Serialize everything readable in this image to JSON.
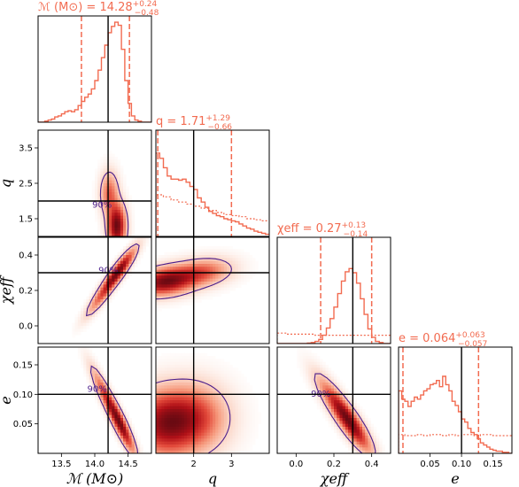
{
  "chart_data": {
    "type": "corner",
    "parameters": [
      {
        "key": "mc",
        "label": "ℳ (M⊙)",
        "range": [
          13.15,
          14.85
        ],
        "ticks": [
          13.5,
          14.0,
          14.5
        ],
        "tick_labels": [
          "13.5",
          "14.0",
          "14.5"
        ],
        "truth": 14.2,
        "title": {
          "prefix": "ℳ (M⊙) = 14.28",
          "sup": "+0.24",
          "sub": "−0.48"
        },
        "credible_interval": [
          13.8,
          14.52
        ],
        "posterior_hist": {
          "bin_edges": [
            13.15,
            13.2,
            13.25,
            13.3,
            13.35,
            13.4,
            13.45,
            13.5,
            13.55,
            13.6,
            13.65,
            13.7,
            13.75,
            13.8,
            13.85,
            13.9,
            13.95,
            14.0,
            14.05,
            14.1,
            14.15,
            14.2,
            14.25,
            14.3,
            14.35,
            14.4,
            14.45,
            14.5,
            14.55,
            14.6,
            14.65,
            14.7,
            14.75,
            14.8,
            14.85
          ],
          "values": [
            0,
            0,
            0.01,
            0.02,
            0.03,
            0.05,
            0.06,
            0.08,
            0.1,
            0.11,
            0.1,
            0.12,
            0.16,
            0.2,
            0.24,
            0.27,
            0.32,
            0.4,
            0.5,
            0.62,
            0.74,
            0.86,
            0.92,
            0.96,
            0.93,
            0.7,
            0.4,
            0.18,
            0.06,
            0.02,
            0.01,
            0,
            0,
            0
          ]
        }
      },
      {
        "key": "q",
        "label": "q",
        "range": [
          1.0,
          4.0
        ],
        "ticks": [
          1.5,
          2.5,
          3.5
        ],
        "tick_labels": [
          "1.5",
          "2.5",
          "3.5"
        ],
        "x_ticks": [
          2,
          3
        ],
        "x_tick_labels": [
          "2",
          "3"
        ],
        "truth": 2.0,
        "title": {
          "prefix": "q = 1.71",
          "sup": "+1.29",
          "sub": "−0.66"
        },
        "credible_interval": [
          1.05,
          3.0
        ],
        "posterior_hist": {
          "bin_edges": [
            1.0,
            1.1,
            1.2,
            1.3,
            1.4,
            1.5,
            1.6,
            1.7,
            1.8,
            1.9,
            2.0,
            2.1,
            2.2,
            2.3,
            2.4,
            2.5,
            2.6,
            2.7,
            2.8,
            2.9,
            3.0,
            3.1,
            3.2,
            3.3,
            3.4,
            3.5,
            3.6,
            3.7,
            3.8,
            3.9,
            4.0
          ],
          "values": [
            0.8,
            0.75,
            0.66,
            0.58,
            0.55,
            0.55,
            0.54,
            0.55,
            0.52,
            0.48,
            0.45,
            0.37,
            0.33,
            0.28,
            0.24,
            0.22,
            0.2,
            0.19,
            0.17,
            0.16,
            0.15,
            0.14,
            0.12,
            0.1,
            0.08,
            0.07,
            0.05,
            0.04,
            0.03,
            0.02
          ]
        },
        "prior_hist": {
          "bin_edges": [
            1.0,
            1.2,
            1.4,
            1.6,
            1.8,
            2.0,
            2.2,
            2.4,
            2.6,
            2.8,
            3.0,
            3.2,
            3.4,
            3.6,
            3.8,
            4.0
          ],
          "values": [
            0.4,
            0.38,
            0.35,
            0.33,
            0.31,
            0.29,
            0.27,
            0.25,
            0.23,
            0.21,
            0.2,
            0.19,
            0.17,
            0.16,
            0.15
          ]
        }
      },
      {
        "key": "chi",
        "label": "χeff",
        "range": [
          -0.1,
          0.5
        ],
        "ticks": [
          0.0,
          0.2,
          0.4
        ],
        "tick_labels": [
          "0.0",
          "0.2",
          "0.4"
        ],
        "truth": 0.3,
        "title": {
          "prefix": "χeff = 0.27",
          "sup": "+0.13",
          "sub": "−0.14"
        },
        "credible_interval": [
          0.13,
          0.4
        ],
        "posterior_hist": {
          "bin_edges": [
            -0.1,
            -0.08,
            -0.06,
            -0.04,
            -0.02,
            0.0,
            0.02,
            0.04,
            0.06,
            0.08,
            0.1,
            0.12,
            0.14,
            0.16,
            0.18,
            0.2,
            0.22,
            0.24,
            0.26,
            0.28,
            0.3,
            0.32,
            0.34,
            0.36,
            0.38,
            0.4,
            0.42,
            0.44,
            0.46,
            0.48,
            0.5
          ],
          "values": [
            0,
            0,
            0,
            0,
            0,
            0,
            0,
            0,
            0.005,
            0.01,
            0.02,
            0.04,
            0.08,
            0.15,
            0.24,
            0.35,
            0.48,
            0.6,
            0.69,
            0.72,
            0.68,
            0.58,
            0.43,
            0.28,
            0.14,
            0.06,
            0.02,
            0.01,
            0,
            0
          ]
        },
        "prior_hist": {
          "bin_edges": [
            -0.1,
            -0.05,
            0.0,
            0.05,
            0.1,
            0.15,
            0.2,
            0.25,
            0.3,
            0.35,
            0.4,
            0.45,
            0.5
          ],
          "values": [
            0.1,
            0.09,
            0.09,
            0.09,
            0.08,
            0.08,
            0.08,
            0.08,
            0.08,
            0.08,
            0.08,
            0.08
          ]
        }
      },
      {
        "key": "e",
        "label": "e",
        "range": [
          0.0,
          0.18
        ],
        "ticks": [
          0.05,
          0.1,
          0.15
        ],
        "tick_labels": [
          "0.05",
          "0.10",
          "0.15"
        ],
        "truth": 0.1,
        "title": {
          "prefix": "e = 0.064",
          "sup": "+0.063",
          "sub": "−0.057"
        },
        "credible_interval": [
          0.007,
          0.127
        ],
        "posterior_hist": {
          "bin_edges": [
            0.0,
            0.005,
            0.01,
            0.015,
            0.02,
            0.025,
            0.03,
            0.035,
            0.04,
            0.045,
            0.05,
            0.055,
            0.06,
            0.065,
            0.07,
            0.075,
            0.08,
            0.085,
            0.09,
            0.095,
            0.1,
            0.105,
            0.11,
            0.115,
            0.12,
            0.125,
            0.13,
            0.135,
            0.14,
            0.145,
            0.15,
            0.155,
            0.16,
            0.165,
            0.17,
            0.175,
            0.18
          ],
          "values": [
            0.6,
            0.52,
            0.5,
            0.45,
            0.5,
            0.54,
            0.52,
            0.56,
            0.6,
            0.62,
            0.66,
            0.67,
            0.7,
            0.64,
            0.74,
            0.66,
            0.6,
            0.5,
            0.46,
            0.4,
            0.33,
            0.3,
            0.24,
            0.2,
            0.18,
            0.14,
            0.1,
            0.08,
            0.06,
            0.04,
            0.03,
            0.02,
            0.02,
            0.01,
            0.01,
            0.0
          ]
        },
        "prior_hist": {
          "bin_edges": [
            0.0,
            0.01,
            0.02,
            0.03,
            0.04,
            0.05,
            0.06,
            0.07,
            0.08,
            0.09,
            0.1,
            0.11,
            0.12,
            0.13,
            0.14,
            0.15,
            0.16,
            0.17,
            0.18
          ],
          "values": [
            0.18,
            0.17,
            0.17,
            0.18,
            0.17,
            0.18,
            0.18,
            0.17,
            0.18,
            0.17,
            0.18,
            0.18,
            0.17,
            0.18,
            0.18,
            0.17,
            0.17,
            0.17
          ]
        }
      }
    ],
    "contour_label": "90%",
    "posterior_color": "#f26b50",
    "density_colormap": [
      "#ffffff",
      "#fbd6c7",
      "#f6997c",
      "#e2493a",
      "#b11118",
      "#6a0a12"
    ],
    "contour_color": "#4b1e8c",
    "truth_line_color": "#000000",
    "pairs": [
      {
        "x": "mc",
        "y": "q",
        "center": [
          14.32,
          1.25
        ],
        "tilt": 0.0,
        "peaks": [
          {
            "at": [
              14.33,
              1.3
            ],
            "w": 1.0
          },
          {
            "at": [
              14.22,
              2.2
            ],
            "w": 0.45
          }
        ],
        "spread": [
          0.12,
          0.55
        ]
      },
      {
        "x": "mc",
        "y": "chi",
        "center": [
          14.3,
          0.27
        ],
        "tilt": 0.9,
        "peaks": [
          {
            "at": [
              14.36,
              0.31
            ],
            "w": 1.0
          },
          {
            "at": [
              14.1,
              0.17
            ],
            "w": 0.4
          }
        ],
        "spread": [
          0.2,
          0.1
        ]
      },
      {
        "x": "q",
        "y": "chi",
        "center": [
          1.5,
          0.25
        ],
        "tilt": 0.25,
        "peaks": [
          {
            "at": [
              1.25,
              0.25
            ],
            "w": 1.0
          },
          {
            "at": [
              2.2,
              0.3
            ],
            "w": 0.5
          }
        ],
        "spread": [
          0.7,
          0.07
        ]
      },
      {
        "x": "mc",
        "y": "e",
        "center": [
          14.3,
          0.07
        ],
        "tilt": -0.9,
        "peaks": [
          {
            "at": [
              14.38,
              0.05
            ],
            "w": 1.0
          },
          {
            "at": [
              14.15,
              0.1
            ],
            "w": 0.45
          }
        ],
        "spread": [
          0.18,
          0.04
        ]
      },
      {
        "x": "q",
        "y": "e",
        "center": [
          1.6,
          0.05
        ],
        "tilt": 0.0,
        "peaks": [
          {
            "at": [
              1.2,
              0.05
            ],
            "w": 1.0
          },
          {
            "at": [
              2.0,
              0.06
            ],
            "w": 0.7
          }
        ],
        "spread": [
          0.8,
          0.05
        ]
      },
      {
        "x": "chi",
        "y": "e",
        "center": [
          0.27,
          0.06
        ],
        "tilt": -0.85,
        "peaks": [
          {
            "at": [
              0.29,
              0.05
            ],
            "w": 1.0
          },
          {
            "at": [
              0.2,
              0.09
            ],
            "w": 0.45
          }
        ],
        "spread": [
          0.09,
          0.04
        ]
      }
    ]
  }
}
